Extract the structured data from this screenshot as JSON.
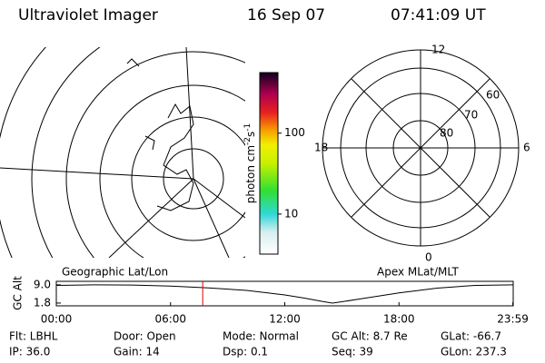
{
  "header": {
    "title": "Ultraviolet Imager",
    "date": "16 Sep 07",
    "time": "07:41:09 UT"
  },
  "maps": {
    "left_label": "Geographic Lat/Lon",
    "right_label": "Apex MLat/MLT",
    "mlt": {
      "top": "12",
      "left": "18",
      "right": "6",
      "bottom": "0"
    },
    "mlat": [
      "80",
      "70",
      "60"
    ]
  },
  "colorbar": {
    "label": "photon cm",
    "exp1": "-2",
    "unit2": "s",
    "exp2": "-1",
    "range": [
      3.2,
      560
    ],
    "log": true,
    "ticks": [
      100,
      10
    ]
  },
  "chart_data": {
    "type": "line",
    "ylabel": "GC Alt",
    "x": [
      0,
      2,
      4,
      6,
      8,
      10,
      12,
      13,
      14,
      14.5,
      15,
      16,
      18,
      20,
      22,
      24
    ],
    "series": [
      {
        "color": "#000000",
        "values": [
          8.8,
          9.0,
          8.9,
          8.5,
          7.8,
          6.8,
          5.0,
          3.8,
          2.4,
          1.8,
          2.3,
          3.5,
          5.8,
          7.7,
          8.8,
          9.0
        ]
      }
    ],
    "xlim": [
      0,
      24
    ],
    "xticks": [
      {
        "value": 0,
        "label": "00:00"
      },
      {
        "value": 6,
        "label": "06:00"
      },
      {
        "value": 12,
        "label": "12:00"
      },
      {
        "value": 18,
        "label": "18:00"
      },
      {
        "value": 23.98,
        "label": "23:59"
      }
    ],
    "ylim": [
      0.7,
      10.4
    ],
    "yticks": [
      {
        "value": 9,
        "label": "9.0"
      },
      1.8
    ],
    "marker_x": 7.69,
    "marker_color": "#e00000"
  },
  "info": [
    [
      "Flt: LBHL",
      "Door: Open",
      "Mode: Normal",
      "GC Alt: 8.7 Re",
      "GLat: -66.7"
    ],
    [
      "IP: 36.0",
      "Gain: 14",
      "Dsp:    0.1",
      "Seq: 39",
      "GLon: 237.3"
    ]
  ]
}
